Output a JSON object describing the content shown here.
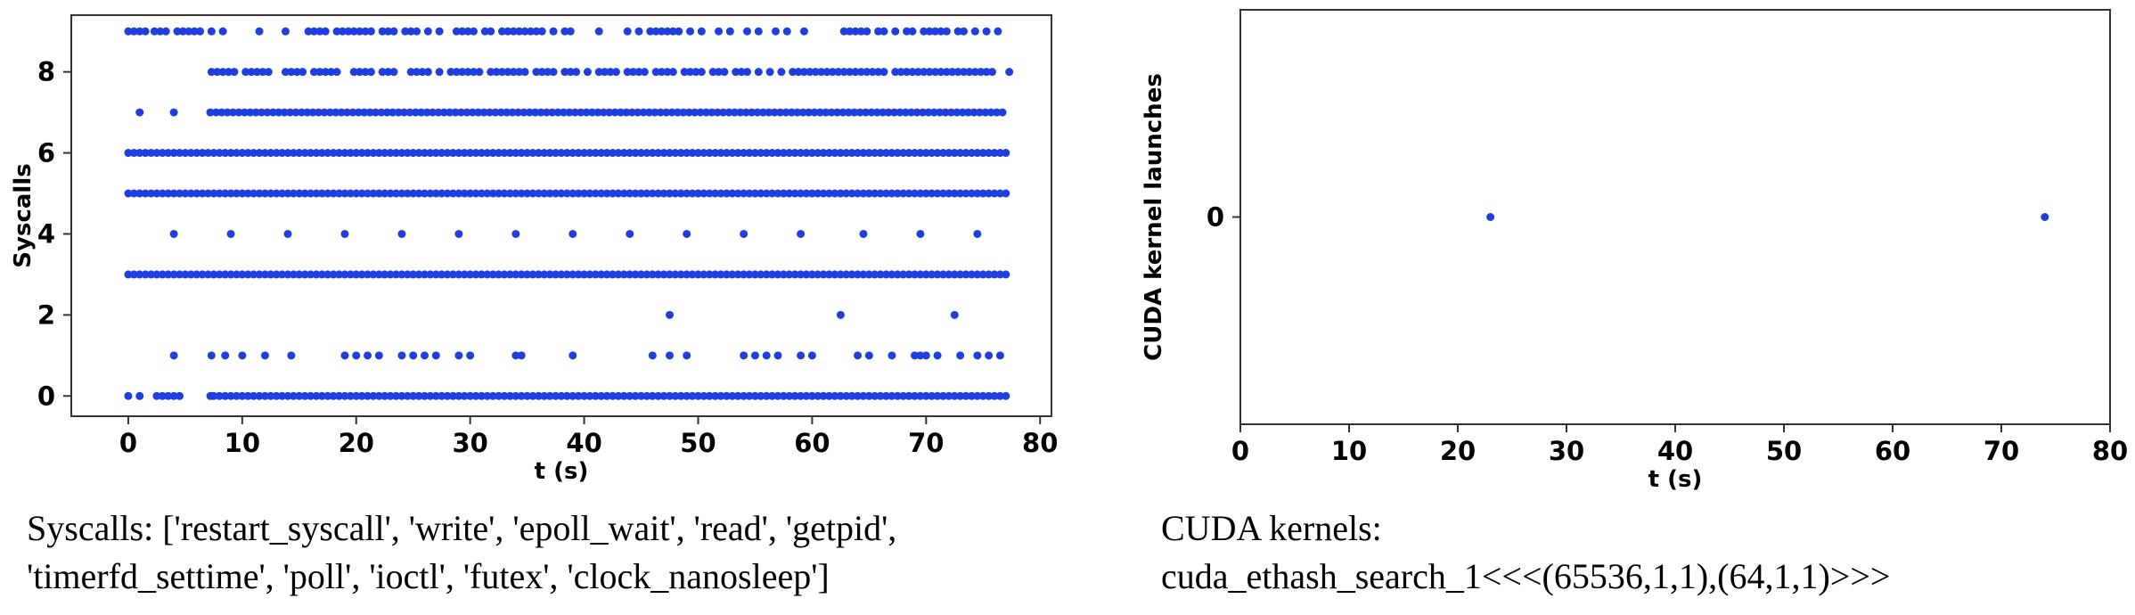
{
  "colors": {
    "points": "#1f3ee0",
    "frame": "#333333",
    "background": "#ffffff"
  },
  "chart_data": [
    {
      "type": "scatter",
      "title": "",
      "xlabel": "t (s)",
      "ylabel": "Syscalls",
      "xlim": [
        -5,
        81
      ],
      "ylim": [
        -0.5,
        9.4
      ],
      "xticks": [
        0,
        10,
        20,
        30,
        40,
        50,
        60,
        70,
        80
      ],
      "yticks": [
        0,
        2,
        4,
        6,
        8
      ],
      "grid": false,
      "legend": "none",
      "series": [
        {
          "y": 0,
          "x": [
            0,
            1,
            2.5,
            3,
            3.5,
            4,
            4.5,
            7.2,
            7.5,
            8,
            8.5,
            9,
            9.5,
            10,
            10.5,
            11,
            11.5,
            12,
            12.5,
            13,
            13.5,
            14,
            14.5,
            15,
            15.5,
            16,
            16.5,
            17,
            17.5,
            18,
            18.5,
            19,
            19.5,
            20,
            20.5,
            21,
            21.5,
            22,
            22.5,
            23,
            23.5,
            24,
            24.5,
            25,
            25.5,
            26,
            26.5,
            27,
            27.5,
            28,
            28.5,
            29,
            29.5,
            30,
            30.5,
            31,
            31.5,
            32,
            32.5,
            33,
            33.5,
            34,
            34.5,
            35,
            35.5,
            36,
            36.5,
            37,
            37.5,
            38,
            38.5,
            39,
            39.5,
            40,
            40.5,
            41,
            41.5,
            42,
            42.5,
            43,
            43.5,
            44,
            44.5,
            45,
            45.5,
            46,
            46.5,
            47,
            47.5,
            48,
            48.5,
            49,
            49.5,
            50,
            50.5,
            51,
            51.5,
            52,
            52.5,
            53,
            53.5,
            54,
            54.5,
            55,
            55.5,
            56,
            56.5,
            57,
            57.5,
            58,
            58.5,
            59,
            59.5,
            60,
            60.5,
            61,
            61.5,
            62,
            62.5,
            63,
            63.5,
            64,
            64.5,
            65,
            65.5,
            66,
            66.5,
            67,
            67.5,
            68,
            68.5,
            69,
            69.5,
            70,
            70.5,
            71,
            71.5,
            72,
            72.5,
            73,
            73.5,
            74,
            74.5,
            75,
            75.5,
            76,
            76.5,
            77
          ]
        },
        {
          "y": 1,
          "x": [
            4,
            7.3,
            8.5,
            10,
            12,
            14.3,
            19,
            20,
            21,
            22,
            24,
            25,
            26,
            27,
            29,
            30,
            34,
            34.5,
            39,
            46,
            47.5,
            49,
            54,
            55,
            56,
            57,
            59,
            60,
            64,
            65,
            67,
            69,
            69.5,
            70,
            71,
            73,
            74.5,
            75.5,
            76.5
          ]
        },
        {
          "y": 2,
          "x": [
            47.5,
            62.5,
            72.5
          ]
        },
        {
          "y": 3,
          "x": [
            0,
            0.5,
            1,
            1.5,
            2,
            2.5,
            3,
            3.5,
            4,
            4.5,
            5,
            5.5,
            6,
            6.5,
            7,
            7.5,
            8,
            8.5,
            9,
            9.5,
            10,
            10.5,
            11,
            11.5,
            12,
            12.5,
            13,
            13.5,
            14,
            14.5,
            15,
            15.5,
            16,
            16.5,
            17,
            17.5,
            18,
            18.5,
            19,
            19.5,
            20,
            20.5,
            21,
            21.5,
            22,
            22.5,
            23,
            23.5,
            24,
            24.5,
            25,
            25.5,
            26,
            26.5,
            27,
            27.5,
            28,
            28.5,
            29,
            29.5,
            30,
            30.5,
            31,
            31.5,
            32,
            32.5,
            33,
            33.5,
            34,
            34.5,
            35,
            35.5,
            36,
            36.5,
            37,
            37.5,
            38,
            38.5,
            39,
            39.5,
            40,
            40.5,
            41,
            41.5,
            42,
            42.5,
            43,
            43.5,
            44,
            44.5,
            45,
            45.5,
            46,
            46.5,
            47,
            47.5,
            48,
            48.5,
            49,
            49.5,
            50,
            50.5,
            51,
            51.5,
            52,
            52.5,
            53,
            53.5,
            54,
            54.5,
            55,
            55.5,
            56,
            56.5,
            57,
            57.5,
            58,
            58.5,
            59,
            59.5,
            60,
            60.5,
            61,
            61.5,
            62,
            62.5,
            63,
            63.5,
            64,
            64.5,
            65,
            65.5,
            66,
            66.5,
            67,
            67.5,
            68,
            68.5,
            69,
            69.5,
            70,
            70.5,
            71,
            71.5,
            72,
            72.5,
            73,
            73.5,
            74,
            74.5,
            75,
            75.5,
            76,
            76.5,
            77
          ]
        },
        {
          "y": 4,
          "x": [
            4,
            9,
            14,
            19,
            24,
            29,
            34,
            39,
            44,
            49,
            54,
            59,
            64.5,
            69.5,
            74.5
          ]
        },
        {
          "y": 5,
          "x": [
            0,
            0.5,
            1,
            1.5,
            2,
            2.5,
            3,
            3.5,
            4,
            4.5,
            5,
            5.5,
            6,
            6.5,
            7,
            7.5,
            8,
            8.5,
            9,
            9.5,
            10,
            10.5,
            11,
            11.5,
            12,
            12.5,
            13,
            13.5,
            14,
            14.5,
            15,
            15.5,
            16,
            16.5,
            17,
            17.5,
            18,
            18.5,
            19,
            19.5,
            20,
            20.5,
            21,
            21.5,
            22,
            22.5,
            23,
            23.5,
            24,
            24.5,
            25,
            25.5,
            26,
            26.5,
            27,
            27.5,
            28,
            28.5,
            29,
            29.5,
            30,
            30.5,
            31,
            31.5,
            32,
            32.5,
            33,
            33.5,
            34,
            34.5,
            35,
            35.5,
            36,
            36.5,
            37,
            37.5,
            38,
            38.5,
            39,
            39.5,
            40,
            40.5,
            41,
            41.5,
            42,
            42.5,
            43,
            43.5,
            44,
            44.5,
            45,
            45.5,
            46,
            46.5,
            47,
            47.5,
            48,
            48.5,
            49,
            49.5,
            50,
            50.5,
            51,
            51.5,
            52,
            52.5,
            53,
            53.5,
            54,
            54.5,
            55,
            55.5,
            56,
            56.5,
            57,
            57.5,
            58,
            58.5,
            59,
            59.5,
            60,
            60.5,
            61,
            61.5,
            62,
            62.5,
            63,
            63.5,
            64,
            64.5,
            65,
            65.5,
            66,
            66.5,
            67,
            67.5,
            68,
            68.5,
            69,
            69.5,
            70,
            70.5,
            71,
            71.5,
            72,
            72.5,
            73,
            73.5,
            74,
            74.5,
            75,
            75.5,
            76,
            76.5,
            77
          ]
        },
        {
          "y": 6,
          "x": [
            0,
            0.5,
            1,
            1.5,
            2,
            2.5,
            3,
            3.5,
            4,
            4.5,
            5,
            5.5,
            6,
            6.5,
            7,
            7.5,
            8,
            8.5,
            9,
            9.5,
            10,
            10.5,
            11,
            11.5,
            12,
            12.5,
            13,
            13.5,
            14,
            14.5,
            15,
            15.5,
            16,
            16.5,
            17,
            17.5,
            18,
            18.5,
            19,
            19.5,
            20,
            20.5,
            21,
            21.5,
            22,
            22.5,
            23,
            23.5,
            24,
            24.5,
            25,
            25.5,
            26,
            26.5,
            27,
            27.5,
            28,
            28.5,
            29,
            29.5,
            30,
            30.5,
            31,
            31.5,
            32,
            32.5,
            33,
            33.5,
            34,
            34.5,
            35,
            35.5,
            36,
            36.5,
            37,
            37.5,
            38,
            38.5,
            39,
            39.5,
            40,
            40.5,
            41,
            41.5,
            42,
            42.5,
            43,
            43.5,
            44,
            44.5,
            45,
            45.5,
            46,
            46.5,
            47,
            47.5,
            48,
            48.5,
            49,
            49.5,
            50,
            50.5,
            51,
            51.5,
            52,
            52.5,
            53,
            53.5,
            54,
            54.5,
            55,
            55.5,
            56,
            56.5,
            57,
            57.5,
            58,
            58.5,
            59,
            59.5,
            60,
            60.5,
            61,
            61.5,
            62,
            62.5,
            63,
            63.5,
            64,
            64.5,
            65,
            65.5,
            66,
            66.5,
            67,
            67.5,
            68,
            68.5,
            69,
            69.5,
            70,
            70.5,
            71,
            71.5,
            72,
            72.5,
            73,
            73.5,
            74,
            74.5,
            75,
            75.5,
            76,
            76.5,
            77
          ]
        },
        {
          "y": 7,
          "x": [
            1,
            4,
            7.2,
            7.7,
            8.2,
            8.7,
            9.2,
            9.7,
            10.2,
            10.7,
            11.2,
            11.7,
            12.2,
            12.7,
            13.2,
            13.7,
            14.2,
            14.7,
            15.2,
            15.7,
            16.2,
            16.7,
            17.2,
            17.7,
            18.2,
            18.7,
            19.2,
            19.7,
            20.2,
            20.7,
            21.2,
            21.7,
            22.2,
            22.7,
            23.2,
            23.7,
            24.2,
            24.7,
            25.2,
            25.7,
            26.2,
            26.7,
            27.2,
            27.7,
            28.2,
            28.7,
            29.2,
            29.7,
            30.2,
            30.7,
            31.2,
            31.7,
            32.2,
            32.7,
            33.2,
            33.7,
            34.2,
            34.7,
            35.2,
            35.7,
            36.2,
            36.7,
            37.2,
            37.7,
            38.2,
            38.7,
            39.2,
            39.7,
            40.2,
            40.7,
            41.2,
            41.7,
            42.2,
            42.7,
            43.2,
            43.7,
            44.2,
            44.7,
            45.2,
            45.7,
            46.2,
            46.7,
            47.2,
            47.7,
            48.2,
            48.7,
            49.2,
            49.7,
            50.2,
            50.7,
            51.2,
            51.7,
            52.2,
            52.7,
            53.2,
            53.7,
            54.2,
            54.7,
            55.2,
            55.7,
            56.2,
            56.7,
            57.2,
            57.7,
            58.2,
            58.7,
            59.2,
            59.7,
            60.2,
            60.7,
            61.2,
            61.7,
            62.2,
            62.7,
            63.2,
            63.7,
            64.2,
            64.7,
            65.2,
            65.7,
            66.2,
            66.7,
            67.2,
            67.7,
            68.2,
            68.7,
            69.2,
            69.7,
            70.2,
            70.7,
            71.2,
            71.7,
            72.2,
            72.7,
            73.2,
            73.7,
            74.2,
            74.7,
            75.2,
            75.7,
            76.2,
            76.7
          ]
        },
        {
          "y": 8,
          "x": [
            7.3,
            7.8,
            8.3,
            8.8,
            9.3,
            10.3,
            10.8,
            11.3,
            11.8,
            12.3,
            13.8,
            14.3,
            14.8,
            15.3,
            16.3,
            16.8,
            17.3,
            17.8,
            18.3,
            19.8,
            20.3,
            20.8,
            21.3,
            22.3,
            22.8,
            23.3,
            24.8,
            25.3,
            25.8,
            26.3,
            27.3,
            28.3,
            28.8,
            29.3,
            29.8,
            30.3,
            30.8,
            31.8,
            32.3,
            32.8,
            33.3,
            33.8,
            34.3,
            34.8,
            35.8,
            36.3,
            36.8,
            37.3,
            38.3,
            38.8,
            39.3,
            40.3,
            41.3,
            41.8,
            42.3,
            42.8,
            43.8,
            44.3,
            44.8,
            45.3,
            46.3,
            46.8,
            47.3,
            47.8,
            48.8,
            49.3,
            49.8,
            50.3,
            51.3,
            51.8,
            52.3,
            53.3,
            53.8,
            54.3,
            55.3,
            56.3,
            57.3,
            58.3,
            58.8,
            59.3,
            59.8,
            60.3,
            60.8,
            61.3,
            61.8,
            62.3,
            62.8,
            63.3,
            63.8,
            64.3,
            64.8,
            65.3,
            65.8,
            66.3,
            67.3,
            67.8,
            68.3,
            68.8,
            69.3,
            69.8,
            70.3,
            70.8,
            71.3,
            71.8,
            72.3,
            72.8,
            73.3,
            73.8,
            74.3,
            74.8,
            75.3,
            75.8,
            77.3
          ]
        },
        {
          "y": 9,
          "x": [
            0,
            0.5,
            1,
            1.5,
            2.3,
            2.8,
            3.3,
            4.3,
            4.8,
            5.3,
            5.8,
            6.3,
            7.3,
            8.3,
            11.5,
            13.8,
            15.8,
            16.3,
            16.8,
            17.3,
            18.3,
            18.8,
            19.3,
            19.8,
            20.3,
            20.8,
            21.3,
            22.3,
            22.8,
            23.3,
            24.3,
            24.8,
            25.3,
            26.3,
            27.3,
            28.8,
            29.3,
            29.8,
            30.3,
            31.3,
            31.8,
            32.8,
            33.3,
            33.8,
            34.3,
            34.8,
            35.3,
            35.8,
            36.3,
            37.3,
            38.3,
            38.8,
            41.3,
            43.8,
            44.8,
            45.8,
            46.3,
            46.8,
            47.3,
            47.8,
            48.3,
            49.3,
            50.3,
            51.8,
            52.8,
            54.3,
            55.3,
            56.8,
            57.8,
            59.3,
            62.8,
            63.3,
            63.8,
            64.3,
            64.8,
            65.8,
            66.3,
            67.3,
            68.3,
            68.8,
            69.8,
            70.3,
            70.8,
            71.3,
            71.8,
            72.8,
            73.3,
            74.3,
            75.3,
            76.3
          ]
        }
      ]
    },
    {
      "type": "scatter",
      "title": "",
      "xlabel": "t (s)",
      "ylabel": "CUDA kernel launches",
      "xlim": [
        0,
        80
      ],
      "ylim": [
        -1,
        1
      ],
      "xticks": [
        0,
        10,
        20,
        30,
        40,
        50,
        60,
        70,
        80
      ],
      "yticks": [
        0
      ],
      "grid": false,
      "legend": "none",
      "series": [
        {
          "x": [
            23,
            74
          ],
          "y": [
            0,
            0
          ]
        }
      ]
    }
  ],
  "captions": {
    "left_line1": "Syscalls: ['restart_syscall', 'write', 'epoll_wait', 'read', 'getpid',",
    "left_line2": "'timerfd_settime', 'poll', 'ioctl', 'futex', 'clock_nanosleep']",
    "right_line1": "CUDA kernels:",
    "right_line2": "cuda_ethash_search_1<<<(65536,1,1),(64,1,1)>>>"
  }
}
